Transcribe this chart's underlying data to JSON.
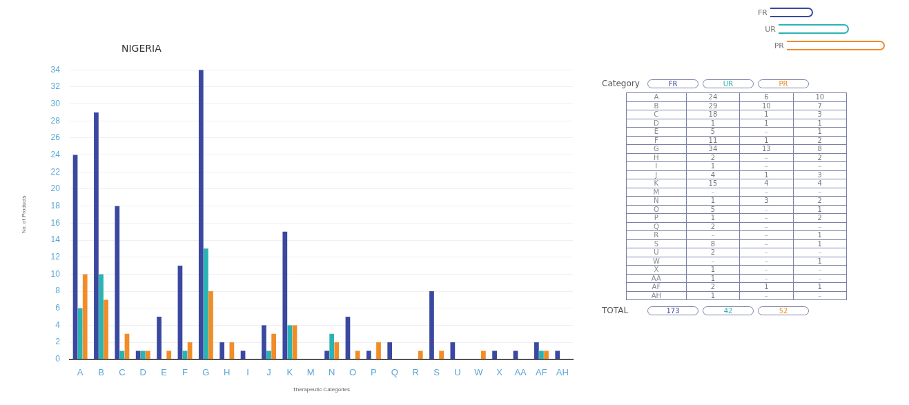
{
  "chart_data": [
    {
      "type": "bar",
      "title": "NIGERIA",
      "xlabel": "Therapeutic Categories",
      "ylabel": "No. of Products",
      "categories": [
        "A",
        "B",
        "C",
        "D",
        "E",
        "F",
        "G",
        "H",
        "I",
        "J",
        "K",
        "M",
        "N",
        "O",
        "P",
        "Q",
        "R",
        "S",
        "U",
        "W",
        "X",
        "AA",
        "AF",
        "AH"
      ],
      "series": [
        {
          "name": "FR",
          "color": "#3a48a0",
          "values": [
            24,
            29,
            18,
            1,
            5,
            11,
            34,
            2,
            1,
            4,
            15,
            null,
            1,
            5,
            1,
            2,
            null,
            8,
            2,
            null,
            1,
            1,
            2,
            1
          ]
        },
        {
          "name": "UR",
          "color": "#2ab3b3",
          "values": [
            6,
            10,
            1,
            1,
            null,
            1,
            13,
            null,
            null,
            1,
            4,
            null,
            3,
            null,
            null,
            null,
            null,
            null,
            null,
            null,
            null,
            null,
            1,
            null
          ]
        },
        {
          "name": "PR",
          "color": "#f28c28",
          "values": [
            10,
            7,
            3,
            1,
            1,
            2,
            8,
            2,
            null,
            3,
            4,
            null,
            2,
            1,
            2,
            null,
            1,
            1,
            null,
            1,
            null,
            null,
            1,
            null
          ]
        }
      ],
      "ylim": [
        0,
        34
      ],
      "yticks": [
        0,
        2,
        4,
        6,
        8,
        10,
        12,
        14,
        16,
        18,
        20,
        22,
        24,
        26,
        28,
        30,
        32,
        34
      ],
      "grid": "y",
      "legend": "top right"
    },
    {
      "type": "other",
      "categories": [
        "A",
        "B",
        "C",
        "D",
        "E",
        "F",
        "G",
        "H",
        "I",
        "J",
        "K",
        "M",
        "N",
        "O",
        "P",
        "Q",
        "R",
        "S",
        "U",
        "W",
        "X",
        "AA",
        "AF",
        "AH"
      ],
      "series": [
        {
          "name": "FR",
          "color": "#3a48a0",
          "values": [
            24,
            29,
            18,
            1,
            5,
            11,
            34,
            2,
            1,
            4,
            15,
            null,
            1,
            5,
            1,
            2,
            null,
            8,
            2,
            null,
            1,
            1,
            2,
            1
          ],
          "value_labels": [
            "24",
            "29",
            "18",
            "1",
            "5",
            "11",
            "34",
            "2",
            "1",
            "4",
            "15",
            "–",
            "1",
            "5",
            "1",
            "2",
            "–",
            "8",
            "2",
            "–",
            "1",
            "1",
            "2",
            "1"
          ]
        },
        {
          "name": "UR",
          "color": "#2ab3b3",
          "values": [
            6,
            10,
            1,
            1,
            null,
            1,
            13,
            null,
            null,
            1,
            4,
            null,
            3,
            null,
            null,
            null,
            null,
            null,
            null,
            null,
            null,
            null,
            1,
            null
          ],
          "value_labels": [
            "6",
            "10",
            "1",
            "1",
            "–",
            "1",
            "13",
            "–",
            "–",
            "1",
            "4",
            "–",
            "3",
            "–",
            "–",
            "–",
            "–",
            "–",
            "–",
            "–",
            "–",
            "–",
            "1",
            "–"
          ]
        },
        {
          "name": "PR",
          "color": "#f28c28",
          "values": [
            10,
            7,
            3,
            1,
            1,
            2,
            8,
            2,
            null,
            3,
            4,
            null,
            2,
            1,
            2,
            null,
            1,
            1,
            null,
            1,
            null,
            null,
            1,
            null
          ],
          "value_labels": [
            "10",
            "7",
            "3",
            "1",
            "1",
            "2",
            "8",
            "2",
            "–",
            "3",
            "4",
            "–",
            "2",
            "1",
            "2",
            "–",
            "1",
            "1",
            "–",
            "1",
            "–",
            "–",
            "1",
            "–"
          ]
        }
      ],
      "annotations": [
        "Category",
        "TOTAL",
        "173",
        "42",
        "52"
      ]
    }
  ]
}
